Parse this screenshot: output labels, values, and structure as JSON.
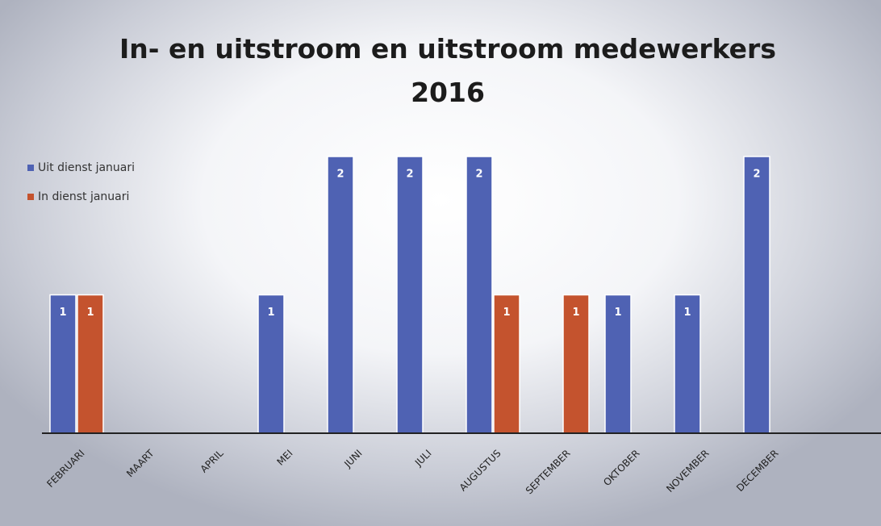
{
  "chart_data": {
    "type": "bar",
    "title": "In- en uitstroom en uitstroom medewerkers\n2016",
    "categories": [
      "FEBRUARI",
      "MAART",
      "APRIL",
      "MEI",
      "JUNI",
      "JULI",
      "AUGUSTUS",
      "SEPTEMBER",
      "OKTOBER",
      "NOVEMBER",
      "DECEMBER"
    ],
    "series": [
      {
        "name": "Uit dienst januari",
        "color": "#4f62b3",
        "values": [
          1,
          null,
          null,
          1,
          2,
          2,
          2,
          null,
          1,
          1,
          2
        ]
      },
      {
        "name": "In dienst januari",
        "color": "#c4532e",
        "values": [
          1,
          null,
          null,
          null,
          null,
          null,
          1,
          1,
          null,
          null,
          null
        ]
      }
    ],
    "ylim": [
      0,
      2
    ],
    "legend": "top-left"
  }
}
